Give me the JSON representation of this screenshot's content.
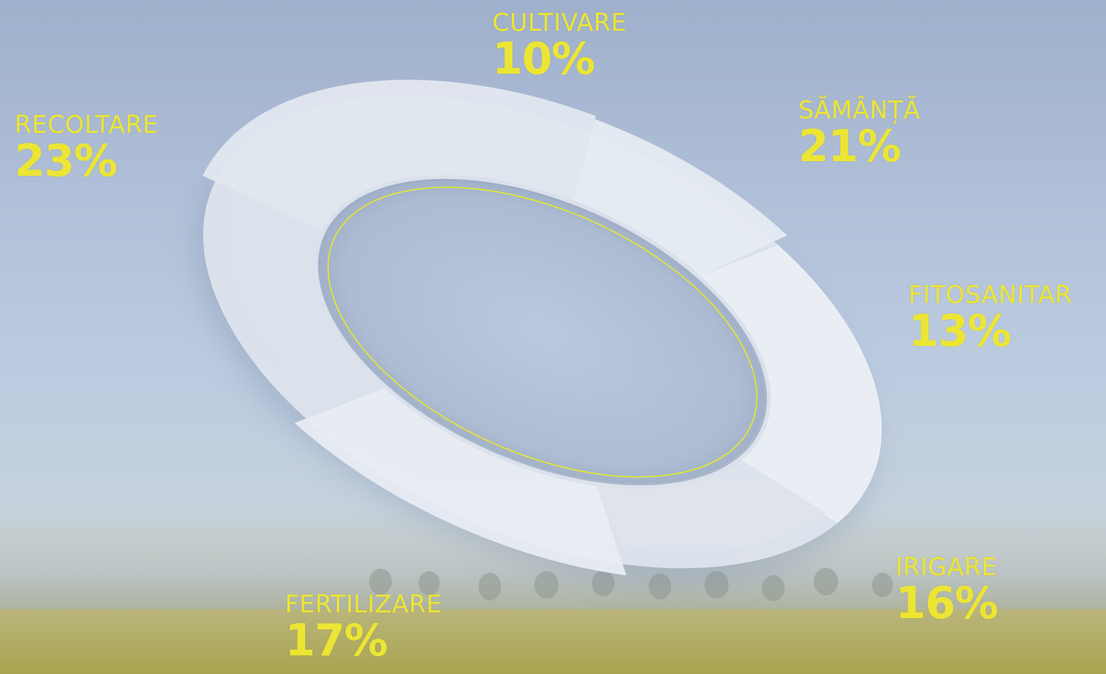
{
  "chart_data": {
    "type": "pie",
    "categories": [
      "CULTIVARE",
      "SĂMÂNȚĂ",
      "FITOSANITAR",
      "IRIGARE",
      "FERTILIZARE",
      "RECOLTARE"
    ],
    "values": [
      10,
      21,
      13,
      16,
      17,
      23
    ],
    "value_labels": [
      "10%",
      "21%",
      "13%",
      "16%",
      "17%",
      "23%"
    ],
    "title": "",
    "legend": "none",
    "colors": {
      "label": "#ece534",
      "segment": "#e3e8f1",
      "inner_ring": "#e4e92a"
    }
  }
}
